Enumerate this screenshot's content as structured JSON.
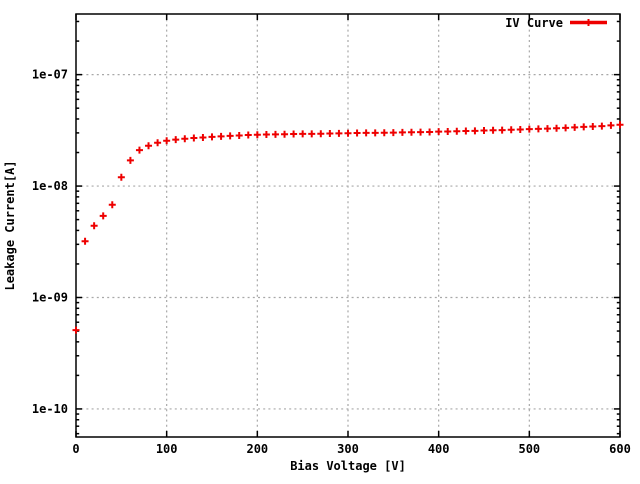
{
  "window": {
    "background": "#ffffff"
  },
  "colors": {
    "series_red": "#ee0000",
    "grid_gray": "#a8a8a8",
    "axis_black": "#000000",
    "text_black": "#000000"
  },
  "chart_data": {
    "type": "scatter",
    "title": "",
    "xlabel": "Bias Voltage [V]",
    "ylabel": "Leakage Current[A]",
    "grid": true,
    "y_scale": "log",
    "xlim": [
      0,
      600
    ],
    "ylim": [
      5.6e-11,
      3.5e-07
    ],
    "x_ticks": [
      {
        "v": 0,
        "label": "0"
      },
      {
        "v": 100,
        "label": "100"
      },
      {
        "v": 200,
        "label": "200"
      },
      {
        "v": 300,
        "label": "300"
      },
      {
        "v": 400,
        "label": "400"
      },
      {
        "v": 500,
        "label": "500"
      },
      {
        "v": 600,
        "label": "600"
      }
    ],
    "y_ticks": [
      {
        "v": 1e-10,
        "label": "1e-10"
      },
      {
        "v": 1e-09,
        "label": "1e-09"
      },
      {
        "v": 1e-08,
        "label": "1e-08"
      },
      {
        "v": 1e-07,
        "label": "1e-07"
      }
    ],
    "legend": {
      "position": "top-right",
      "entries": [
        {
          "label": "IV Curve",
          "color": "#ee0000",
          "marker": "plus"
        }
      ]
    },
    "series": [
      {
        "name": "IV Curve",
        "color": "#ee0000",
        "marker": "plus",
        "x": [
          0,
          10,
          20,
          30,
          40,
          50,
          60,
          70,
          80,
          90,
          100,
          110,
          120,
          130,
          140,
          150,
          160,
          170,
          180,
          190,
          200,
          210,
          220,
          230,
          240,
          250,
          260,
          270,
          280,
          290,
          300,
          310,
          320,
          330,
          340,
          350,
          360,
          370,
          380,
          390,
          400,
          410,
          420,
          430,
          440,
          450,
          460,
          470,
          480,
          490,
          500,
          510,
          520,
          530,
          540,
          550,
          560,
          570,
          580,
          590,
          600
        ],
        "y": [
          5.1e-10,
          3.2e-09,
          4.4e-09,
          5.4e-09,
          6.8e-09,
          1.2e-08,
          1.7e-08,
          2.1e-08,
          2.3e-08,
          2.45e-08,
          2.55e-08,
          2.61e-08,
          2.66e-08,
          2.7e-08,
          2.73e-08,
          2.76e-08,
          2.79e-08,
          2.82e-08,
          2.84e-08,
          2.87e-08,
          2.89e-08,
          2.9e-08,
          2.91e-08,
          2.92e-08,
          2.93e-08,
          2.94e-08,
          2.94e-08,
          2.95e-08,
          2.96e-08,
          2.97e-08,
          2.98e-08,
          2.99e-08,
          3e-08,
          3e-08,
          3.01e-08,
          3.02e-08,
          3.03e-08,
          3.04e-08,
          3.05e-08,
          3.06e-08,
          3.08e-08,
          3.09e-08,
          3.1e-08,
          3.12e-08,
          3.13e-08,
          3.15e-08,
          3.17e-08,
          3.18e-08,
          3.2e-08,
          3.22e-08,
          3.24e-08,
          3.26e-08,
          3.28e-08,
          3.3e-08,
          3.33e-08,
          3.36e-08,
          3.4e-08,
          3.42e-08,
          3.45e-08,
          3.5e-08,
          3.55e-08
        ]
      }
    ]
  }
}
